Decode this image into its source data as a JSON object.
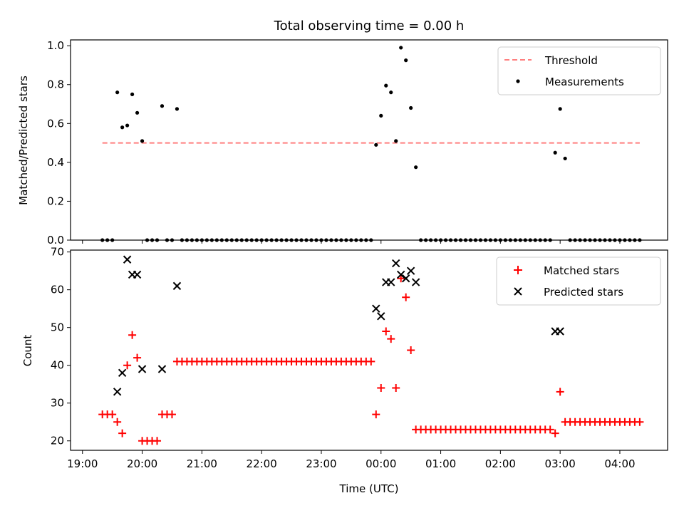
{
  "title": "Total observing time = 0.00 h",
  "colors": {
    "threshold": "#ff7f7f",
    "measurement": "#000000",
    "matched": "#ff0000",
    "predicted": "#000000"
  },
  "chart_data": [
    {
      "type": "scatter",
      "ylabel": "Matched/Predicted stars",
      "xlabel": "",
      "ylim": [
        0,
        1.03
      ],
      "yticks": [
        0.0,
        0.2,
        0.4,
        0.6,
        0.8,
        1.0
      ],
      "ytick_labels": [
        "0.0",
        "0.2",
        "0.4",
        "0.6",
        "0.8",
        "1.0"
      ],
      "legend_position": "top-right",
      "threshold": {
        "name": "Threshold",
        "value": 0.5,
        "x_start": "19:20",
        "x_end": "04:20"
      },
      "series": [
        {
          "name": "Measurements",
          "marker": "dot",
          "points": [
            [
              "19:20",
              0
            ],
            [
              "19:25",
              0
            ],
            [
              "19:30",
              0
            ],
            [
              "19:35",
              0.76
            ],
            [
              "19:40",
              0.58
            ],
            [
              "19:45",
              0.59
            ],
            [
              "19:50",
              0.75
            ],
            [
              "19:55",
              0.655
            ],
            [
              "20:00",
              0.51
            ],
            [
              "20:05",
              0
            ],
            [
              "20:10",
              0
            ],
            [
              "20:15",
              0
            ],
            [
              "20:20",
              0.69
            ],
            [
              "20:25",
              0
            ],
            [
              "20:30",
              0
            ],
            [
              "20:35",
              0.675
            ],
            [
              "20:40",
              0
            ],
            [
              "20:45",
              0
            ],
            [
              "20:50",
              0
            ],
            [
              "20:55",
              0
            ],
            [
              "21:00",
              0
            ],
            [
              "21:05",
              0
            ],
            [
              "21:10",
              0
            ],
            [
              "21:15",
              0
            ],
            [
              "21:20",
              0
            ],
            [
              "21:25",
              0
            ],
            [
              "21:30",
              0
            ],
            [
              "21:35",
              0
            ],
            [
              "21:40",
              0
            ],
            [
              "21:45",
              0
            ],
            [
              "21:50",
              0
            ],
            [
              "21:55",
              0
            ],
            [
              "22:00",
              0
            ],
            [
              "22:05",
              0
            ],
            [
              "22:10",
              0
            ],
            [
              "22:15",
              0
            ],
            [
              "22:20",
              0
            ],
            [
              "22:25",
              0
            ],
            [
              "22:30",
              0
            ],
            [
              "22:35",
              0
            ],
            [
              "22:40",
              0
            ],
            [
              "22:45",
              0
            ],
            [
              "22:50",
              0
            ],
            [
              "22:55",
              0
            ],
            [
              "23:00",
              0
            ],
            [
              "23:05",
              0
            ],
            [
              "23:10",
              0
            ],
            [
              "23:15",
              0
            ],
            [
              "23:20",
              0
            ],
            [
              "23:25",
              0
            ],
            [
              "23:30",
              0
            ],
            [
              "23:35",
              0
            ],
            [
              "23:40",
              0
            ],
            [
              "23:45",
              0
            ],
            [
              "23:50",
              0
            ],
            [
              "23:55",
              0.49
            ],
            [
              "00:00",
              0.64
            ],
            [
              "00:05",
              0.795
            ],
            [
              "00:10",
              0.76
            ],
            [
              "00:15",
              0.51
            ],
            [
              "00:20",
              0.99
            ],
            [
              "00:25",
              0.925
            ],
            [
              "00:30",
              0.68
            ],
            [
              "00:35",
              0.375
            ],
            [
              "00:40",
              0
            ],
            [
              "00:45",
              0
            ],
            [
              "00:50",
              0
            ],
            [
              "00:55",
              0
            ],
            [
              "01:00",
              0
            ],
            [
              "01:05",
              0
            ],
            [
              "01:10",
              0
            ],
            [
              "01:15",
              0
            ],
            [
              "01:20",
              0
            ],
            [
              "01:25",
              0
            ],
            [
              "01:30",
              0
            ],
            [
              "01:35",
              0
            ],
            [
              "01:40",
              0
            ],
            [
              "01:45",
              0
            ],
            [
              "01:50",
              0
            ],
            [
              "01:55",
              0
            ],
            [
              "02:00",
              0
            ],
            [
              "02:05",
              0
            ],
            [
              "02:10",
              0
            ],
            [
              "02:15",
              0
            ],
            [
              "02:20",
              0
            ],
            [
              "02:25",
              0
            ],
            [
              "02:30",
              0
            ],
            [
              "02:35",
              0
            ],
            [
              "02:40",
              0
            ],
            [
              "02:45",
              0
            ],
            [
              "02:50",
              0
            ],
            [
              "02:55",
              0.45
            ],
            [
              "03:00",
              0.675
            ],
            [
              "03:05",
              0.42
            ],
            [
              "03:10",
              0
            ],
            [
              "03:15",
              0
            ],
            [
              "03:20",
              0
            ],
            [
              "03:25",
              0
            ],
            [
              "03:30",
              0
            ],
            [
              "03:35",
              0
            ],
            [
              "03:40",
              0
            ],
            [
              "03:45",
              0
            ],
            [
              "03:50",
              0
            ],
            [
              "03:55",
              0
            ],
            [
              "04:00",
              0
            ],
            [
              "04:05",
              0
            ],
            [
              "04:10",
              0
            ],
            [
              "04:15",
              0
            ],
            [
              "04:20",
              0
            ]
          ]
        }
      ]
    },
    {
      "type": "scatter",
      "ylabel": "Count",
      "xlabel": "Time (UTC)",
      "ylim": [
        17.5,
        70.5
      ],
      "yticks": [
        20,
        30,
        40,
        50,
        60,
        70
      ],
      "ytick_labels": [
        "20",
        "30",
        "40",
        "50",
        "60",
        "70"
      ],
      "xticks": [
        "19:00",
        "20:00",
        "21:00",
        "22:00",
        "23:00",
        "00:00",
        "01:00",
        "02:00",
        "03:00",
        "04:00"
      ],
      "xlim": [
        "18:48",
        "04:48"
      ],
      "legend_position": "top-right",
      "series": [
        {
          "name": "Matched stars",
          "marker": "plus",
          "points": [
            [
              "19:20",
              27
            ],
            [
              "19:25",
              27
            ],
            [
              "19:30",
              27
            ],
            [
              "19:35",
              25
            ],
            [
              "19:40",
              22
            ],
            [
              "19:45",
              40
            ],
            [
              "19:50",
              48
            ],
            [
              "19:55",
              42
            ],
            [
              "20:00",
              20
            ],
            [
              "20:05",
              20
            ],
            [
              "20:10",
              20
            ],
            [
              "20:15",
              20
            ],
            [
              "20:20",
              27
            ],
            [
              "20:25",
              27
            ],
            [
              "20:30",
              27
            ],
            [
              "20:35",
              41
            ],
            [
              "20:40",
              41
            ],
            [
              "20:45",
              41
            ],
            [
              "20:50",
              41
            ],
            [
              "20:55",
              41
            ],
            [
              "21:00",
              41
            ],
            [
              "21:05",
              41
            ],
            [
              "21:10",
              41
            ],
            [
              "21:15",
              41
            ],
            [
              "21:20",
              41
            ],
            [
              "21:25",
              41
            ],
            [
              "21:30",
              41
            ],
            [
              "21:35",
              41
            ],
            [
              "21:40",
              41
            ],
            [
              "21:45",
              41
            ],
            [
              "21:50",
              41
            ],
            [
              "21:55",
              41
            ],
            [
              "22:00",
              41
            ],
            [
              "22:05",
              41
            ],
            [
              "22:10",
              41
            ],
            [
              "22:15",
              41
            ],
            [
              "22:20",
              41
            ],
            [
              "22:25",
              41
            ],
            [
              "22:30",
              41
            ],
            [
              "22:35",
              41
            ],
            [
              "22:40",
              41
            ],
            [
              "22:45",
              41
            ],
            [
              "22:50",
              41
            ],
            [
              "22:55",
              41
            ],
            [
              "23:00",
              41
            ],
            [
              "23:05",
              41
            ],
            [
              "23:10",
              41
            ],
            [
              "23:15",
              41
            ],
            [
              "23:20",
              41
            ],
            [
              "23:25",
              41
            ],
            [
              "23:30",
              41
            ],
            [
              "23:35",
              41
            ],
            [
              "23:40",
              41
            ],
            [
              "23:45",
              41
            ],
            [
              "23:50",
              41
            ],
            [
              "23:55",
              27
            ],
            [
              "00:00",
              34
            ],
            [
              "00:05",
              49
            ],
            [
              "00:10",
              47
            ],
            [
              "00:15",
              34
            ],
            [
              "00:20",
              63
            ],
            [
              "00:25",
              58
            ],
            [
              "00:30",
              44
            ],
            [
              "00:35",
              23
            ],
            [
              "00:40",
              23
            ],
            [
              "00:45",
              23
            ],
            [
              "00:50",
              23
            ],
            [
              "00:55",
              23
            ],
            [
              "01:00",
              23
            ],
            [
              "01:05",
              23
            ],
            [
              "01:10",
              23
            ],
            [
              "01:15",
              23
            ],
            [
              "01:20",
              23
            ],
            [
              "01:25",
              23
            ],
            [
              "01:30",
              23
            ],
            [
              "01:35",
              23
            ],
            [
              "01:40",
              23
            ],
            [
              "01:45",
              23
            ],
            [
              "01:50",
              23
            ],
            [
              "01:55",
              23
            ],
            [
              "02:00",
              23
            ],
            [
              "02:05",
              23
            ],
            [
              "02:10",
              23
            ],
            [
              "02:15",
              23
            ],
            [
              "02:20",
              23
            ],
            [
              "02:25",
              23
            ],
            [
              "02:30",
              23
            ],
            [
              "02:35",
              23
            ],
            [
              "02:40",
              23
            ],
            [
              "02:45",
              23
            ],
            [
              "02:50",
              23
            ],
            [
              "02:55",
              22
            ],
            [
              "03:00",
              33
            ],
            [
              "03:05",
              25
            ],
            [
              "03:10",
              25
            ],
            [
              "03:15",
              25
            ],
            [
              "03:20",
              25
            ],
            [
              "03:25",
              25
            ],
            [
              "03:30",
              25
            ],
            [
              "03:35",
              25
            ],
            [
              "03:40",
              25
            ],
            [
              "03:45",
              25
            ],
            [
              "03:50",
              25
            ],
            [
              "03:55",
              25
            ],
            [
              "04:00",
              25
            ],
            [
              "04:05",
              25
            ],
            [
              "04:10",
              25
            ],
            [
              "04:15",
              25
            ],
            [
              "04:20",
              25
            ]
          ]
        },
        {
          "name": "Predicted stars",
          "marker": "x",
          "points": [
            [
              "19:35",
              33
            ],
            [
              "19:40",
              38
            ],
            [
              "19:45",
              68
            ],
            [
              "19:50",
              64
            ],
            [
              "19:55",
              64
            ],
            [
              "20:00",
              39
            ],
            [
              "20:20",
              39
            ],
            [
              "20:35",
              61
            ],
            [
              "23:55",
              55
            ],
            [
              "00:00",
              53
            ],
            [
              "00:05",
              62
            ],
            [
              "00:10",
              62
            ],
            [
              "00:15",
              67
            ],
            [
              "00:20",
              64
            ],
            [
              "00:25",
              63
            ],
            [
              "00:30",
              65
            ],
            [
              "00:35",
              62
            ],
            [
              "02:55",
              49
            ],
            [
              "03:00",
              49
            ]
          ]
        }
      ]
    }
  ]
}
